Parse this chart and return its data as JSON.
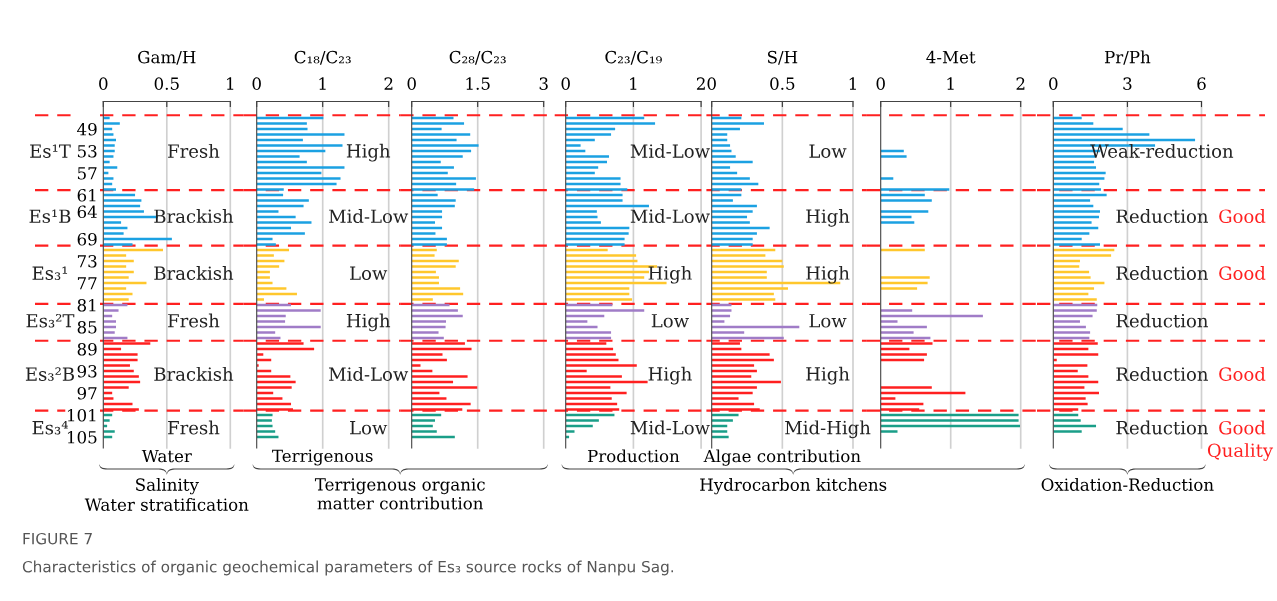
{
  "chart_data": [
    {
      "type": "bar",
      "orientation": "horizontal",
      "title": "Gam/H",
      "xlabel": "Water",
      "xlim": [
        0,
        1
      ],
      "xticks": [
        0,
        0.5,
        1
      ],
      "ylim": [
        107,
        44
      ],
      "yticks": [
        49,
        53,
        57,
        61,
        64,
        69,
        73,
        77,
        81,
        85,
        89,
        93,
        97,
        101,
        105
      ],
      "x": [
        47,
        48,
        49,
        50,
        51,
        52,
        53,
        54,
        55,
        56,
        57,
        58,
        59,
        60,
        61,
        62,
        63,
        64,
        65,
        66,
        67,
        68,
        69,
        70,
        71,
        72,
        73,
        74,
        75,
        76,
        77,
        78,
        79,
        80,
        81,
        82,
        83,
        84,
        85,
        86,
        87,
        88,
        89,
        90,
        91,
        92,
        93,
        94,
        95,
        96,
        97,
        98,
        99,
        100,
        101,
        102,
        103,
        104,
        105
      ],
      "values": [
        0.05,
        0.13,
        0.07,
        0.08,
        0.1,
        0.09,
        0.09,
        0.08,
        0.05,
        0.11,
        0.04,
        0.08,
        0.07,
        0.1,
        0.25,
        0.3,
        0.29,
        0.32,
        0.43,
        0.14,
        0.19,
        0.16,
        0.54,
        0.23,
        0.47,
        0.18,
        0.24,
        0.18,
        0.24,
        0.2,
        0.34,
        0.18,
        0.23,
        0.2,
        0.19,
        0.12,
        0.07,
        0.1,
        0.1,
        0.09,
        0.19,
        0.37,
        0.14,
        0.27,
        0.27,
        0.21,
        0.24,
        0.28,
        0.29,
        0.2,
        0.07,
        0.08,
        0.23,
        0.28,
        0.07,
        0.05,
        0.03,
        0.09,
        0.07
      ],
      "colors": [
        "#1ba1e2",
        "#1ba1e2",
        "#1ba1e2",
        "#1ba1e2",
        "#1ba1e2",
        "#1ba1e2",
        "#1ba1e2",
        "#1ba1e2",
        "#1ba1e2",
        "#1ba1e2",
        "#1ba1e2",
        "#1ba1e2",
        "#1ba1e2",
        "#1ba1e2",
        "#1ba1e2",
        "#1ba1e2",
        "#1ba1e2",
        "#1ba1e2",
        "#1ba1e2",
        "#1ba1e2",
        "#1ba1e2",
        "#1ba1e2",
        "#1ba1e2",
        "#1ba1e2",
        "#ffc72c",
        "#ffc72c",
        "#ffc72c",
        "#ffc72c",
        "#ffc72c",
        "#ffc72c",
        "#ffc72c",
        "#ffc72c",
        "#ffc72c",
        "#ffc72c",
        "#a07cc7",
        "#a07cc7",
        "#a07cc7",
        "#a07cc7",
        "#a07cc7",
        "#a07cc7",
        "#a07cc7",
        "#ff2020",
        "#ff2020",
        "#ff2020",
        "#ff2020",
        "#ff2020",
        "#ff2020",
        "#ff2020",
        "#ff2020",
        "#ff2020",
        "#ff2020",
        "#ff2020",
        "#ff2020",
        "#ff2020",
        "#1a9e88",
        "#1a9e88",
        "#1a9e88",
        "#1a9e88",
        "#1a9e88"
      ],
      "ref_lines": [
        {
          "axis": "x",
          "value": 0.5,
          "color": "#d0d0d0",
          "line_style": "solid"
        },
        {
          "axis": "x",
          "value": 1,
          "color": "#d0d0d0",
          "line_style": "solid"
        },
        {
          "axis": "y",
          "value": 46.5,
          "color": "#ff2020",
          "line_style": "dashed"
        },
        {
          "axis": "y",
          "value": 60.1,
          "color": "#ff2020",
          "line_style": "dashed"
        },
        {
          "axis": "y",
          "value": 70.2,
          "color": "#ff2020",
          "line_style": "dashed"
        },
        {
          "axis": "y",
          "value": 80.8,
          "color": "#ff2020",
          "line_style": "dashed"
        },
        {
          "axis": "y",
          "value": 87.5,
          "color": "#ff2020",
          "line_style": "dashed"
        },
        {
          "axis": "y",
          "value": 100.2,
          "color": "#ff2020",
          "line_style": "dashed"
        }
      ],
      "annotations": [
        "Fresh",
        "Brackish",
        "Brackish",
        "Fresh",
        "Brackish",
        "Fresh",
        "Es¹T",
        "Es¹B",
        "Es₃¹",
        "Es₃²T",
        "Es₃²B",
        "Es₃⁴",
        "Salinity",
        "Water stratification",
        "FIGURE 7",
        "Characteristics of organic geochemical parameters of Es₃ source rocks of Nanpu Sag."
      ]
    },
    {
      "type": "bar",
      "orientation": "horizontal",
      "title": "C₁₈/C₂₃",
      "xlabel": "Terrigenous",
      "xlim": [
        0,
        2
      ],
      "xticks": [
        0,
        1,
        2
      ],
      "ylim": [
        107,
        44
      ],
      "tick_labels": "x",
      "x": [
        47,
        48,
        49,
        50,
        51,
        52,
        53,
        54,
        55,
        56,
        57,
        58,
        59,
        60,
        61,
        62,
        63,
        64,
        65,
        66,
        67,
        68,
        69,
        70,
        71,
        72,
        73,
        74,
        75,
        76,
        77,
        78,
        79,
        80,
        81,
        82,
        83,
        84,
        85,
        86,
        87,
        88,
        89,
        90,
        91,
        92,
        93,
        94,
        95,
        96,
        97,
        98,
        99,
        100,
        101,
        102,
        103,
        104,
        105
      ],
      "values": [
        1.01,
        0.76,
        0.77,
        1.33,
        0.7,
        1.3,
        1.04,
        0.65,
        0.76,
        1.33,
        0.98,
        1.27,
        1.21,
        0.41,
        0.4,
        0.79,
        0.71,
        0.33,
        0.59,
        0.83,
        0.52,
        0.73,
        0.24,
        0.29,
        0.49,
        0.26,
        0.42,
        0.34,
        0.2,
        0.2,
        0.24,
        0.45,
        0.61,
        0.11,
        0.52,
        0.97,
        0.44,
        0.43,
        0.97,
        0.28,
        0.36,
        0.71,
        0.87,
        0.1,
        0.22,
        0.03,
        0.22,
        0.51,
        0.59,
        0.53,
        0.25,
        0.39,
        0.52,
        0.55,
        0.24,
        0.23,
        0.24,
        0.28,
        0.33
      ],
      "colors": [
        "#1ba1e2",
        "#1ba1e2",
        "#1ba1e2",
        "#1ba1e2",
        "#1ba1e2",
        "#1ba1e2",
        "#1ba1e2",
        "#1ba1e2",
        "#1ba1e2",
        "#1ba1e2",
        "#1ba1e2",
        "#1ba1e2",
        "#1ba1e2",
        "#1ba1e2",
        "#1ba1e2",
        "#1ba1e2",
        "#1ba1e2",
        "#1ba1e2",
        "#1ba1e2",
        "#1ba1e2",
        "#1ba1e2",
        "#1ba1e2",
        "#1ba1e2",
        "#1ba1e2",
        "#ffc72c",
        "#ffc72c",
        "#ffc72c",
        "#ffc72c",
        "#ffc72c",
        "#ffc72c",
        "#ffc72c",
        "#ffc72c",
        "#ffc72c",
        "#ffc72c",
        "#a07cc7",
        "#a07cc7",
        "#a07cc7",
        "#a07cc7",
        "#a07cc7",
        "#a07cc7",
        "#a07cc7",
        "#ff2020",
        "#ff2020",
        "#ff2020",
        "#ff2020",
        "#ff2020",
        "#ff2020",
        "#ff2020",
        "#ff2020",
        "#ff2020",
        "#ff2020",
        "#ff2020",
        "#ff2020",
        "#ff2020",
        "#1a9e88",
        "#1a9e88",
        "#1a9e88",
        "#1a9e88",
        "#1a9e88"
      ],
      "ref_lines": [
        {
          "axis": "x",
          "value": 1,
          "color": "#d0d0d0",
          "line_style": "solid"
        },
        {
          "axis": "x",
          "value": 2,
          "color": "#d0d0d0",
          "line_style": "solid"
        },
        {
          "axis": "y",
          "value": 46.5,
          "color": "#ff2020",
          "line_style": "dashed"
        },
        {
          "axis": "y",
          "value": 60.1,
          "color": "#ff2020",
          "line_style": "dashed"
        },
        {
          "axis": "y",
          "value": 70.2,
          "color": "#ff2020",
          "line_style": "dashed"
        },
        {
          "axis": "y",
          "value": 80.8,
          "color": "#ff2020",
          "line_style": "dashed"
        },
        {
          "axis": "y",
          "value": 87.5,
          "color": "#ff2020",
          "line_style": "dashed"
        },
        {
          "axis": "y",
          "value": 100.2,
          "color": "#ff2020",
          "line_style": "dashed"
        }
      ],
      "annotations": [
        "High",
        "Mid-Low",
        "Low",
        "High",
        "Mid-Low",
        "Low",
        "Terrigenous organic\nmatter contribution"
      ]
    },
    {
      "type": "bar",
      "orientation": "horizontal",
      "title": "C₂₈/C₂₃",
      "xlim": [
        0,
        3
      ],
      "xticks": [
        0,
        1.5,
        3
      ],
      "ylim": [
        107,
        44
      ],
      "tick_labels": "x",
      "x": [
        47,
        48,
        49,
        50,
        51,
        52,
        53,
        54,
        55,
        56,
        57,
        58,
        59,
        60,
        61,
        62,
        63,
        64,
        65,
        66,
        67,
        68,
        69,
        70,
        71,
        72,
        73,
        74,
        75,
        76,
        77,
        78,
        79,
        80,
        81,
        82,
        83,
        84,
        85,
        86,
        87,
        88,
        89,
        90,
        91,
        92,
        93,
        94,
        95,
        96,
        97,
        98,
        99,
        100,
        101,
        102,
        103,
        104,
        105
      ],
      "values": [
        0.95,
        1.19,
        0.68,
        1.33,
        1.02,
        1.52,
        1.35,
        1.16,
        0.66,
        0.96,
        0.82,
        1.46,
        1.01,
        1.42,
        0.59,
        1.0,
        0.98,
        0.69,
        0.69,
        0.53,
        0.69,
        0.54,
        0.8,
        0.8,
        0.57,
        0.52,
        1.07,
        1.0,
        0.55,
        0.62,
        0.62,
        1.1,
        1.17,
        0.48,
        0.86,
        1.05,
        1.16,
        0.78,
        0.77,
        0.61,
        0.73,
        1.21,
        1.36,
        0.7,
        0.8,
        0.2,
        0.47,
        1.27,
        0.94,
        1.49,
        0.63,
        0.79,
        1.34,
        1.15,
        0.67,
        0.53,
        0.48,
        0.57,
        0.98
      ],
      "colors": [
        "#1ba1e2",
        "#1ba1e2",
        "#1ba1e2",
        "#1ba1e2",
        "#1ba1e2",
        "#1ba1e2",
        "#1ba1e2",
        "#1ba1e2",
        "#1ba1e2",
        "#1ba1e2",
        "#1ba1e2",
        "#1ba1e2",
        "#1ba1e2",
        "#1ba1e2",
        "#1ba1e2",
        "#1ba1e2",
        "#1ba1e2",
        "#1ba1e2",
        "#1ba1e2",
        "#1ba1e2",
        "#1ba1e2",
        "#1ba1e2",
        "#1ba1e2",
        "#1ba1e2",
        "#ffc72c",
        "#ffc72c",
        "#ffc72c",
        "#ffc72c",
        "#ffc72c",
        "#ffc72c",
        "#ffc72c",
        "#ffc72c",
        "#ffc72c",
        "#ffc72c",
        "#a07cc7",
        "#a07cc7",
        "#a07cc7",
        "#a07cc7",
        "#a07cc7",
        "#a07cc7",
        "#a07cc7",
        "#ff2020",
        "#ff2020",
        "#ff2020",
        "#ff2020",
        "#ff2020",
        "#ff2020",
        "#ff2020",
        "#ff2020",
        "#ff2020",
        "#ff2020",
        "#ff2020",
        "#ff2020",
        "#ff2020",
        "#1a9e88",
        "#1a9e88",
        "#1a9e88",
        "#1a9e88",
        "#1a9e88"
      ],
      "ref_lines": [
        {
          "axis": "x",
          "value": 1.5,
          "color": "#d0d0d0",
          "line_style": "solid"
        },
        {
          "axis": "x",
          "value": 3,
          "color": "#d0d0d0",
          "line_style": "solid"
        },
        {
          "axis": "y",
          "value": 46.5,
          "color": "#ff2020",
          "line_style": "dashed"
        },
        {
          "axis": "y",
          "value": 60.1,
          "color": "#ff2020",
          "line_style": "dashed"
        },
        {
          "axis": "y",
          "value": 70.2,
          "color": "#ff2020",
          "line_style": "dashed"
        },
        {
          "axis": "y",
          "value": 80.8,
          "color": "#ff2020",
          "line_style": "dashed"
        },
        {
          "axis": "y",
          "value": 87.5,
          "color": "#ff2020",
          "line_style": "dashed"
        },
        {
          "axis": "y",
          "value": 100.2,
          "color": "#ff2020",
          "line_style": "dashed"
        }
      ]
    },
    {
      "type": "bar",
      "orientation": "horizontal",
      "title": "C₂₃/C₁₉",
      "xlabel": "Production",
      "xlim": [
        0,
        2
      ],
      "xticks": [
        0,
        1,
        2
      ],
      "ylim": [
        107,
        44
      ],
      "tick_labels": "x",
      "x": [
        47,
        48,
        49,
        50,
        51,
        52,
        53,
        54,
        55,
        56,
        57,
        58,
        59,
        60,
        61,
        62,
        63,
        64,
        65,
        66,
        67,
        68,
        69,
        70,
        71,
        72,
        73,
        74,
        75,
        76,
        77,
        78,
        79,
        80,
        81,
        82,
        83,
        84,
        85,
        86,
        87,
        88,
        89,
        90,
        91,
        92,
        93,
        94,
        95,
        96,
        97,
        98,
        99,
        100,
        101,
        102,
        103,
        104,
        105
      ],
      "values": [
        1.16,
        1.32,
        0.73,
        0.67,
        0.43,
        0.22,
        0.29,
        0.64,
        0.61,
        0.48,
        0.43,
        0.81,
        0.81,
        0.91,
        0.84,
        0.84,
        1.23,
        0.46,
        0.47,
        0.52,
        0.94,
        0.93,
        0.87,
        0.87,
        0.62,
        1.04,
        1.06,
        1.35,
        1.23,
        1.16,
        1.49,
        0.94,
        0.94,
        0.98,
        0.69,
        1.16,
        0.57,
        0.32,
        0.47,
        0.67,
        0.67,
        0.6,
        0.7,
        0.74,
        0.78,
        1.05,
        0.31,
        0.83,
        1.21,
        0.66,
        0.9,
        0.68,
        0.76,
        0.79,
        0.72,
        0.49,
        0.4,
        0.13,
        0.05
      ],
      "colors": [
        "#1ba1e2",
        "#1ba1e2",
        "#1ba1e2",
        "#1ba1e2",
        "#1ba1e2",
        "#1ba1e2",
        "#1ba1e2",
        "#1ba1e2",
        "#1ba1e2",
        "#1ba1e2",
        "#1ba1e2",
        "#1ba1e2",
        "#1ba1e2",
        "#1ba1e2",
        "#1ba1e2",
        "#1ba1e2",
        "#1ba1e2",
        "#1ba1e2",
        "#1ba1e2",
        "#1ba1e2",
        "#1ba1e2",
        "#1ba1e2",
        "#1ba1e2",
        "#1ba1e2",
        "#ffc72c",
        "#ffc72c",
        "#ffc72c",
        "#ffc72c",
        "#ffc72c",
        "#ffc72c",
        "#ffc72c",
        "#ffc72c",
        "#ffc72c",
        "#ffc72c",
        "#a07cc7",
        "#a07cc7",
        "#a07cc7",
        "#a07cc7",
        "#a07cc7",
        "#a07cc7",
        "#a07cc7",
        "#ff2020",
        "#ff2020",
        "#ff2020",
        "#ff2020",
        "#ff2020",
        "#ff2020",
        "#ff2020",
        "#ff2020",
        "#ff2020",
        "#ff2020",
        "#ff2020",
        "#ff2020",
        "#ff2020",
        "#1a9e88",
        "#1a9e88",
        "#1a9e88",
        "#1a9e88",
        "#1a9e88"
      ],
      "ref_lines": [
        {
          "axis": "x",
          "value": 1,
          "color": "#d0d0d0",
          "line_style": "solid"
        },
        {
          "axis": "x",
          "value": 2,
          "color": "#d0d0d0",
          "line_style": "solid"
        },
        {
          "axis": "y",
          "value": 46.5,
          "color": "#ff2020",
          "line_style": "dashed"
        },
        {
          "axis": "y",
          "value": 60.1,
          "color": "#ff2020",
          "line_style": "dashed"
        },
        {
          "axis": "y",
          "value": 70.2,
          "color": "#ff2020",
          "line_style": "dashed"
        },
        {
          "axis": "y",
          "value": 80.8,
          "color": "#ff2020",
          "line_style": "dashed"
        },
        {
          "axis": "y",
          "value": 87.5,
          "color": "#ff2020",
          "line_style": "dashed"
        },
        {
          "axis": "y",
          "value": 100.2,
          "color": "#ff2020",
          "line_style": "dashed"
        }
      ],
      "annotations": [
        "Mid-Low",
        "Mid-Low",
        "High",
        "Low",
        "High",
        "Mid-Low",
        "Hydrocarbon kitchens"
      ]
    },
    {
      "type": "bar",
      "orientation": "horizontal",
      "title": "S/H",
      "xlabel": "Algae contribution",
      "xlim": [
        0,
        1
      ],
      "xticks": [
        0,
        0.5,
        1
      ],
      "ylim": [
        107,
        44
      ],
      "tick_labels": "x",
      "x": [
        47,
        48,
        49,
        50,
        51,
        52,
        53,
        54,
        55,
        56,
        57,
        58,
        59,
        60,
        61,
        62,
        63,
        64,
        65,
        66,
        67,
        68,
        69,
        70,
        71,
        72,
        73,
        74,
        75,
        76,
        77,
        78,
        79,
        80,
        81,
        82,
        83,
        84,
        85,
        86,
        87,
        88,
        89,
        90,
        91,
        92,
        93,
        94,
        95,
        96,
        97,
        98,
        99,
        100,
        101,
        102,
        103,
        104,
        105
      ],
      "values": [
        0.21,
        0.37,
        0.2,
        0.11,
        0.11,
        0.13,
        0.14,
        0.17,
        0.29,
        0.13,
        0.18,
        0.27,
        0.33,
        0.21,
        0.21,
        0.15,
        0.32,
        0.29,
        0.25,
        0.27,
        0.41,
        0.32,
        0.29,
        0.29,
        0.45,
        0.38,
        0.5,
        0.51,
        0.39,
        0.39,
        0.91,
        0.54,
        0.44,
        0.45,
        0.14,
        0.14,
        0.13,
        0.09,
        0.62,
        0.23,
        0.51,
        0.2,
        0.21,
        0.41,
        0.44,
        0.3,
        0.32,
        0.28,
        0.49,
        0.32,
        0.29,
        0.19,
        0.3,
        0.34,
        0.19,
        0.15,
        0.11,
        0.11,
        0.12
      ],
      "colors": [
        "#1ba1e2",
        "#1ba1e2",
        "#1ba1e2",
        "#1ba1e2",
        "#1ba1e2",
        "#1ba1e2",
        "#1ba1e2",
        "#1ba1e2",
        "#1ba1e2",
        "#1ba1e2",
        "#1ba1e2",
        "#1ba1e2",
        "#1ba1e2",
        "#1ba1e2",
        "#1ba1e2",
        "#1ba1e2",
        "#1ba1e2",
        "#1ba1e2",
        "#1ba1e2",
        "#1ba1e2",
        "#1ba1e2",
        "#1ba1e2",
        "#1ba1e2",
        "#1ba1e2",
        "#ffc72c",
        "#ffc72c",
        "#ffc72c",
        "#ffc72c",
        "#ffc72c",
        "#ffc72c",
        "#ffc72c",
        "#ffc72c",
        "#ffc72c",
        "#ffc72c",
        "#a07cc7",
        "#a07cc7",
        "#a07cc7",
        "#a07cc7",
        "#a07cc7",
        "#a07cc7",
        "#a07cc7",
        "#ff2020",
        "#ff2020",
        "#ff2020",
        "#ff2020",
        "#ff2020",
        "#ff2020",
        "#ff2020",
        "#ff2020",
        "#ff2020",
        "#ff2020",
        "#ff2020",
        "#ff2020",
        "#ff2020",
        "#1a9e88",
        "#1a9e88",
        "#1a9e88",
        "#1a9e88",
        "#1a9e88"
      ],
      "ref_lines": [
        {
          "axis": "x",
          "value": 0.5,
          "color": "#d0d0d0",
          "line_style": "solid"
        },
        {
          "axis": "x",
          "value": 1,
          "color": "#d0d0d0",
          "line_style": "solid"
        },
        {
          "axis": "y",
          "value": 46.5,
          "color": "#ff2020",
          "line_style": "dashed"
        },
        {
          "axis": "y",
          "value": 60.1,
          "color": "#ff2020",
          "line_style": "dashed"
        },
        {
          "axis": "y",
          "value": 70.2,
          "color": "#ff2020",
          "line_style": "dashed"
        },
        {
          "axis": "y",
          "value": 80.8,
          "color": "#ff2020",
          "line_style": "dashed"
        },
        {
          "axis": "y",
          "value": 87.5,
          "color": "#ff2020",
          "line_style": "dashed"
        },
        {
          "axis": "y",
          "value": 100.2,
          "color": "#ff2020",
          "line_style": "dashed"
        }
      ],
      "annotations": [
        "Low",
        "High",
        "High",
        "Low",
        "High",
        "Mid-High"
      ]
    },
    {
      "type": "bar",
      "orientation": "horizontal",
      "title": "4-Met",
      "xlim": [
        0,
        2
      ],
      "xticks": [
        0,
        1,
        2
      ],
      "ylim": [
        107,
        44
      ],
      "tick_labels": "x",
      "x": [
        53,
        54,
        55,
        56,
        57,
        58,
        59,
        60,
        61,
        62,
        63,
        64,
        65,
        66,
        67,
        68,
        69,
        70,
        71,
        72,
        73,
        74,
        75,
        76,
        77,
        78,
        79,
        80,
        81,
        82,
        83,
        84,
        85,
        86,
        87,
        88,
        89,
        90,
        91,
        92,
        93,
        94,
        95,
        96,
        97,
        98,
        99,
        100,
        101,
        102,
        103,
        104
      ],
      "values": [
        0.33,
        0.37,
        null,
        null,
        null,
        0.18,
        null,
        0.98,
        0.63,
        0.73,
        null,
        0.68,
        0.44,
        0.48,
        null,
        null,
        null,
        null,
        0.63,
        null,
        null,
        null,
        null,
        0.7,
        0.67,
        0.52,
        null,
        null,
        null,
        0.45,
        1.46,
        0.24,
        0.66,
        0.47,
        0.71,
        0.74,
        0.41,
        0.66,
        0.62,
        null,
        null,
        null,
        null,
        0.73,
        1.21,
        0.21,
        0.61,
        0.55,
        1.97,
        1.97,
        1.99,
        0.24
      ],
      "colors": [
        "#1ba1e2",
        "#1ba1e2",
        "#1ba1e2",
        "#1ba1e2",
        "#1ba1e2",
        "#1ba1e2",
        "#1ba1e2",
        "#1ba1e2",
        "#1ba1e2",
        "#1ba1e2",
        "#1ba1e2",
        "#1ba1e2",
        "#1ba1e2",
        "#1ba1e2",
        "#1ba1e2",
        "#1ba1e2",
        "#1ba1e2",
        "#1ba1e2",
        "#ffc72c",
        "#ffc72c",
        "#ffc72c",
        "#ffc72c",
        "#ffc72c",
        "#ffc72c",
        "#ffc72c",
        "#ffc72c",
        "#ffc72c",
        "#ffc72c",
        "#a07cc7",
        "#a07cc7",
        "#a07cc7",
        "#a07cc7",
        "#a07cc7",
        "#a07cc7",
        "#a07cc7",
        "#ff2020",
        "#ff2020",
        "#ff2020",
        "#ff2020",
        "#ff2020",
        "#ff2020",
        "#ff2020",
        "#ff2020",
        "#ff2020",
        "#ff2020",
        "#ff2020",
        "#ff2020",
        "#ff2020",
        "#1a9e88",
        "#1a9e88",
        "#1a9e88",
        "#1a9e88"
      ],
      "ref_lines": [
        {
          "axis": "x",
          "value": 1,
          "color": "#d0d0d0",
          "line_style": "solid"
        },
        {
          "axis": "x",
          "value": 2,
          "color": "#d0d0d0",
          "line_style": "solid"
        },
        {
          "axis": "y",
          "value": 46.5,
          "color": "#ff2020",
          "line_style": "dashed"
        },
        {
          "axis": "y",
          "value": 60.1,
          "color": "#ff2020",
          "line_style": "dashed"
        },
        {
          "axis": "y",
          "value": 70.2,
          "color": "#ff2020",
          "line_style": "dashed"
        },
        {
          "axis": "y",
          "value": 80.8,
          "color": "#ff2020",
          "line_style": "dashed"
        },
        {
          "axis": "y",
          "value": 87.5,
          "color": "#ff2020",
          "line_style": "dashed"
        },
        {
          "axis": "y",
          "value": 100.2,
          "color": "#ff2020",
          "line_style": "dashed"
        }
      ]
    },
    {
      "type": "bar",
      "orientation": "horizontal",
      "title": "Pr/Ph",
      "xlim": [
        0,
        6
      ],
      "xticks": [
        0,
        3,
        6
      ],
      "ylim": [
        107,
        44
      ],
      "tick_labels": "x",
      "x": [
        47,
        48,
        49,
        50,
        51,
        52,
        53,
        54,
        55,
        56,
        57,
        58,
        59,
        60,
        61,
        62,
        63,
        64,
        65,
        66,
        67,
        68,
        69,
        70,
        71,
        72,
        73,
        74,
        75,
        76,
        77,
        78,
        79,
        80,
        81,
        82,
        83,
        84,
        85,
        86,
        87,
        88,
        89,
        90,
        91,
        92,
        93,
        94,
        95,
        96,
        97,
        98,
        99,
        100,
        101,
        102,
        103,
        104
      ],
      "values": [
        1.15,
        1.62,
        2.81,
        3.89,
        5.74,
        4.12,
        1.9,
        1.69,
        1.65,
        1.73,
        2.12,
        2.07,
        1.86,
        1.93,
        2.16,
        1.49,
        1.62,
        1.89,
        1.85,
        1.55,
        1.82,
        1.46,
        1.15,
        1.89,
        2.47,
        2.34,
        1.08,
        1.05,
        1.45,
        1.51,
        2.07,
        1.65,
        1.42,
        1.76,
        1.78,
        1.76,
        1.59,
        1.08,
        1.32,
        1.49,
        1.46,
        1.8,
        1.42,
        1.82,
        0.14,
        1.38,
        0.99,
        1.42,
        1.82,
        1.26,
        1.85,
        1.31,
        1.39,
        1.01,
        1.01,
        1.11,
        1.73,
        1.15
      ],
      "colors": [
        "#1ba1e2",
        "#1ba1e2",
        "#1ba1e2",
        "#1ba1e2",
        "#1ba1e2",
        "#1ba1e2",
        "#1ba1e2",
        "#1ba1e2",
        "#1ba1e2",
        "#1ba1e2",
        "#1ba1e2",
        "#1ba1e2",
        "#1ba1e2",
        "#1ba1e2",
        "#1ba1e2",
        "#1ba1e2",
        "#1ba1e2",
        "#1ba1e2",
        "#1ba1e2",
        "#1ba1e2",
        "#1ba1e2",
        "#1ba1e2",
        "#1ba1e2",
        "#1ba1e2",
        "#ffc72c",
        "#ffc72c",
        "#ffc72c",
        "#ffc72c",
        "#ffc72c",
        "#ffc72c",
        "#ffc72c",
        "#ffc72c",
        "#ffc72c",
        "#ffc72c",
        "#a07cc7",
        "#a07cc7",
        "#a07cc7",
        "#a07cc7",
        "#a07cc7",
        "#a07cc7",
        "#a07cc7",
        "#ff2020",
        "#ff2020",
        "#ff2020",
        "#ff2020",
        "#ff2020",
        "#ff2020",
        "#ff2020",
        "#ff2020",
        "#ff2020",
        "#ff2020",
        "#ff2020",
        "#ff2020",
        "#ff2020",
        "#1a9e88",
        "#1a9e88",
        "#1a9e88",
        "#1a9e88"
      ],
      "ref_lines": [
        {
          "axis": "x",
          "value": 3,
          "color": "#d0d0d0",
          "line_style": "solid"
        },
        {
          "axis": "x",
          "value": 6,
          "color": "#d0d0d0",
          "line_style": "solid"
        },
        {
          "axis": "y",
          "value": 46.5,
          "color": "#ff2020",
          "line_style": "dashed"
        },
        {
          "axis": "y",
          "value": 60.1,
          "color": "#ff2020",
          "line_style": "dashed"
        },
        {
          "axis": "y",
          "value": 70.2,
          "color": "#ff2020",
          "line_style": "dashed"
        },
        {
          "axis": "y",
          "value": 80.8,
          "color": "#ff2020",
          "line_style": "dashed"
        },
        {
          "axis": "y",
          "value": 87.5,
          "color": "#ff2020",
          "line_style": "dashed"
        },
        {
          "axis": "y",
          "value": 100.2,
          "color": "#ff2020",
          "line_style": "dashed"
        }
      ],
      "annotations": [
        "Weak-reduction",
        "Reduction",
        "Reduction",
        "Reduction",
        "Reduction",
        "Reduction",
        "Good",
        "Good",
        "Good",
        "Good",
        "Quality",
        "Oxidation-Reduction"
      ]
    }
  ]
}
